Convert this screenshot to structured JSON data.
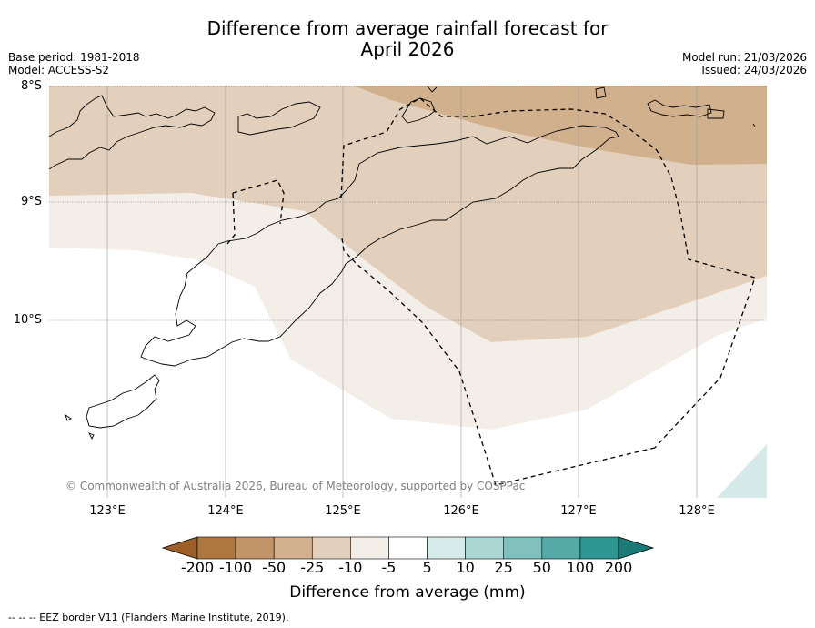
{
  "title": {
    "line1": "Difference from average rainfall forecast for",
    "line2": "April 2026"
  },
  "meta": {
    "base_period": "Base period: 1981-2018",
    "model": "Model: ACCESS-S2",
    "model_run": "Model run: 21/03/2026",
    "issued": "Issued: 24/03/2026"
  },
  "map": {
    "lat_labels": [
      "8°S",
      "9°S",
      "10°S"
    ],
    "lon_labels": [
      "123°E",
      "124°E",
      "125°E",
      "126°E",
      "127°E",
      "128°E"
    ],
    "copyright": "© Commonwealth of Australia 2026, Bureau of Meteorology, supported by COSPPac",
    "regions": [
      {
        "name": "-50 to -25 mm",
        "color": "#d1b08e"
      },
      {
        "name": "-25 to -10 mm",
        "color": "#e2d0bd"
      },
      {
        "name": "-10 to -5 mm",
        "color": "#f4eee8"
      },
      {
        "name": "10 to 25 mm",
        "color": "#d5e9e9"
      }
    ]
  },
  "colorbar": {
    "labels": [
      "-200",
      "-100",
      "-50",
      "-25",
      "-10",
      "-5",
      "5",
      "10",
      "25",
      "50",
      "100",
      "200"
    ],
    "colors": [
      "#9c5f2a",
      "#ad7740",
      "#c1946a",
      "#d2b090",
      "#e2d0bd",
      "#f4eee8",
      "#ffffff",
      "#d6ebe9",
      "#acd6d4",
      "#80c1be",
      "#56aaa8",
      "#2e9693",
      "#1a7a77"
    ],
    "title": "Difference from average (mm)"
  },
  "footer": "--  --  -- EEZ border V11 (Flanders Marine Institute, 2019)."
}
